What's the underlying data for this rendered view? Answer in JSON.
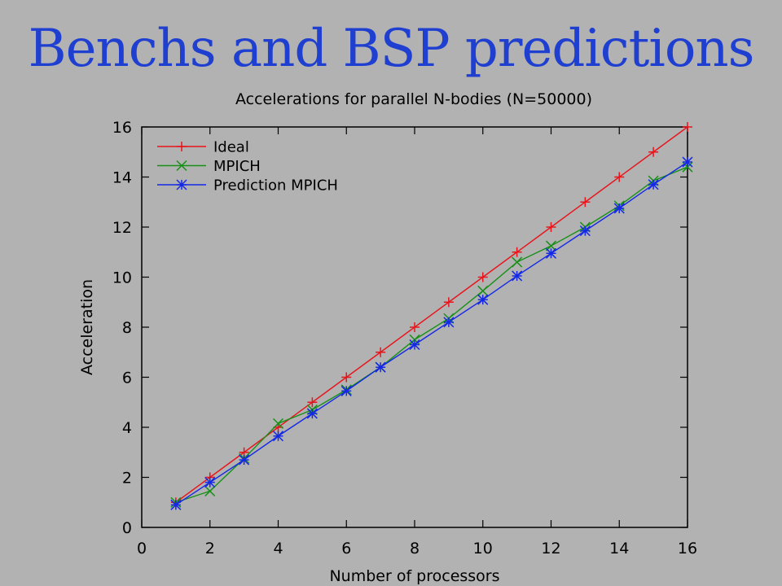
{
  "slide": {
    "title": "Benchs and BSP predictions"
  },
  "chart_data": {
    "type": "line",
    "title": "Accelerations for parallel N-bodies (N=50000)",
    "xlabel": "Number of processors",
    "ylabel": "Acceleration",
    "xlim": [
      0,
      16
    ],
    "ylim": [
      0,
      16
    ],
    "xticks": [
      0,
      2,
      4,
      6,
      8,
      10,
      12,
      14,
      16
    ],
    "yticks": [
      0,
      2,
      4,
      6,
      8,
      10,
      12,
      14,
      16
    ],
    "grid": false,
    "legend_position": "top-left",
    "x": [
      1,
      2,
      3,
      4,
      5,
      6,
      7,
      8,
      9,
      10,
      11,
      12,
      13,
      14,
      15,
      16
    ],
    "series": [
      {
        "name": "Ideal",
        "color": "#e8141b",
        "marker": "plus",
        "values": [
          1,
          2,
          3,
          4,
          5,
          6,
          7,
          8,
          9,
          10,
          11,
          12,
          13,
          14,
          15,
          16
        ]
      },
      {
        "name": "MPICH",
        "color": "#179017",
        "marker": "x",
        "values": [
          1.0,
          1.45,
          2.75,
          4.15,
          4.7,
          5.5,
          6.4,
          7.5,
          8.35,
          9.45,
          10.6,
          11.25,
          12.0,
          12.85,
          13.85,
          14.4
        ]
      },
      {
        "name": "Prediction MPICH",
        "color": "#1428e6",
        "marker": "star",
        "values": [
          0.9,
          1.8,
          2.7,
          3.65,
          4.55,
          5.45,
          6.4,
          7.3,
          8.2,
          9.1,
          10.05,
          10.95,
          11.85,
          12.75,
          13.7,
          14.6
        ]
      }
    ]
  }
}
